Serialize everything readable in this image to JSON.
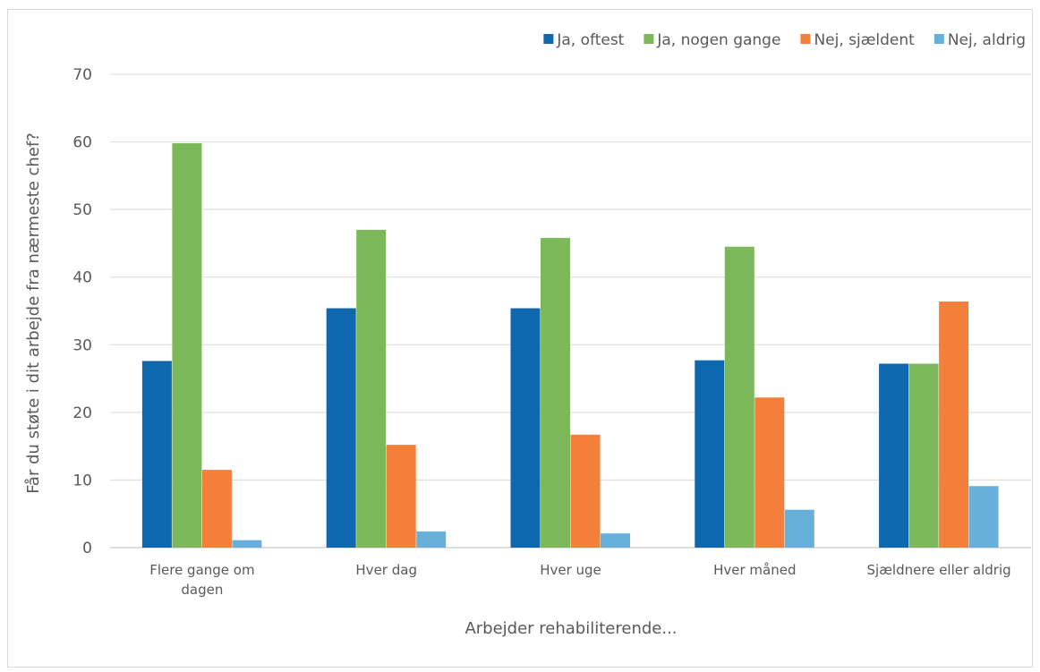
{
  "chart_data": {
    "type": "bar",
    "title": "",
    "xlabel": "Arbejder rehabiliterende...",
    "ylabel": "Får du støte i dit arbejde fra nærmeste chef?",
    "categories": [
      [
        "Flere gange om",
        "dagen"
      ],
      [
        "Hver dag"
      ],
      [
        "Hver uge"
      ],
      [
        "Hver måned"
      ],
      [
        "Sjældnere eller aldrig"
      ]
    ],
    "series": [
      {
        "name": "Ja, oftest",
        "color": "#0f67ae",
        "values": [
          27.6,
          35.4,
          35.4,
          27.7,
          27.2
        ]
      },
      {
        "name": "Ja, nogen gange",
        "color": "#7cb85a",
        "values": [
          59.8,
          47.0,
          45.8,
          44.5,
          27.2
        ]
      },
      {
        "name": "Nej, sjældent",
        "color": "#f47f3a",
        "values": [
          11.5,
          15.2,
          16.7,
          22.2,
          36.4
        ]
      },
      {
        "name": "Nej, aldrig",
        "color": "#68b0dc",
        "values": [
          1.1,
          2.4,
          2.1,
          5.6,
          9.1
        ]
      }
    ],
    "ylim": [
      0,
      70
    ],
    "yticks": [
      0,
      10,
      20,
      30,
      40,
      50,
      60,
      70
    ],
    "grid": true,
    "legend_position": "top-right"
  }
}
